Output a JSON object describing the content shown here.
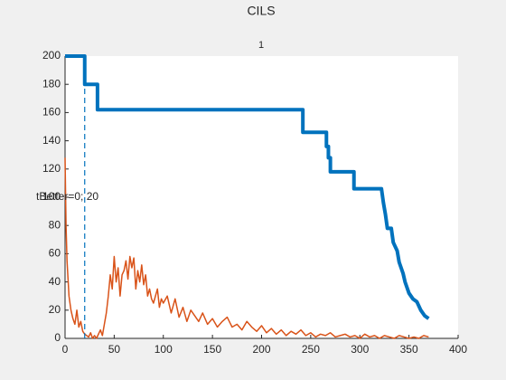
{
  "chart_data": {
    "type": "line",
    "title": "CILS",
    "subtitle": "1",
    "xlim": [
      0,
      400
    ],
    "xticks": [
      0,
      50,
      100,
      150,
      200,
      250,
      300,
      350,
      400
    ],
    "ylim": [
      0,
      200
    ],
    "yticks": [
      0,
      20,
      40,
      60,
      80,
      100,
      120,
      140,
      160,
      180,
      200
    ],
    "series": [
      {
        "color": "#0072bd",
        "width": 4,
        "x": [
          0,
          20,
          20,
          33,
          33,
          242,
          242,
          266,
          266,
          268,
          268,
          270,
          270,
          294,
          294,
          322,
          324,
          326,
          328,
          332,
          334,
          338,
          340,
          344,
          346,
          350,
          354,
          358,
          362,
          366,
          370
        ],
        "values": [
          200,
          200,
          180,
          180,
          162,
          162,
          146,
          146,
          136,
          136,
          128,
          128,
          118,
          118,
          106,
          106,
          96,
          88,
          78,
          78,
          68,
          62,
          54,
          46,
          40,
          32,
          28,
          26,
          20,
          16,
          14
        ]
      },
      {
        "color": "#d95319",
        "width": 1.5,
        "x": [
          0,
          1,
          2,
          4,
          6,
          8,
          10,
          12,
          14,
          16,
          18,
          20,
          22,
          24,
          26,
          28,
          30,
          32,
          34,
          36,
          38,
          40,
          42,
          44,
          46,
          48,
          50,
          52,
          54,
          56,
          58,
          60,
          62,
          64,
          66,
          68,
          70,
          72,
          74,
          76,
          78,
          80,
          82,
          84,
          86,
          88,
          90,
          92,
          94,
          96,
          98,
          100,
          104,
          108,
          112,
          116,
          120,
          124,
          128,
          132,
          136,
          140,
          145,
          150,
          155,
          160,
          165,
          170,
          175,
          180,
          185,
          190,
          195,
          200,
          205,
          210,
          215,
          220,
          225,
          230,
          235,
          240,
          245,
          250,
          255,
          260,
          265,
          270,
          275,
          280,
          285,
          290,
          295,
          300,
          305,
          310,
          315,
          320,
          325,
          330,
          335,
          340,
          345,
          350,
          355,
          360,
          365,
          370
        ],
        "values": [
          128,
          80,
          55,
          30,
          20,
          14,
          10,
          20,
          8,
          12,
          5,
          3,
          2,
          1,
          4,
          0,
          2,
          0,
          3,
          6,
          2,
          10,
          18,
          30,
          45,
          35,
          58,
          40,
          50,
          30,
          45,
          48,
          55,
          42,
          58,
          50,
          57,
          35,
          48,
          40,
          52,
          38,
          45,
          30,
          35,
          28,
          25,
          30,
          35,
          22,
          28,
          25,
          30,
          18,
          28,
          15,
          22,
          12,
          20,
          16,
          12,
          18,
          10,
          14,
          8,
          12,
          15,
          8,
          10,
          6,
          12,
          8,
          5,
          9,
          4,
          7,
          3,
          6,
          2,
          5,
          3,
          6,
          2,
          4,
          1,
          3,
          2,
          4,
          1,
          2,
          3,
          1,
          2,
          0,
          3,
          1,
          2,
          0,
          2,
          1,
          0,
          2,
          1,
          0,
          1,
          0,
          2,
          1
        ]
      }
    ],
    "marker_line": {
      "x": 20,
      "y": [
        0,
        180
      ],
      "color": "#0072bd"
    },
    "annotation": {
      "text": "tBetter=0; 20",
      "y": 100
    }
  }
}
